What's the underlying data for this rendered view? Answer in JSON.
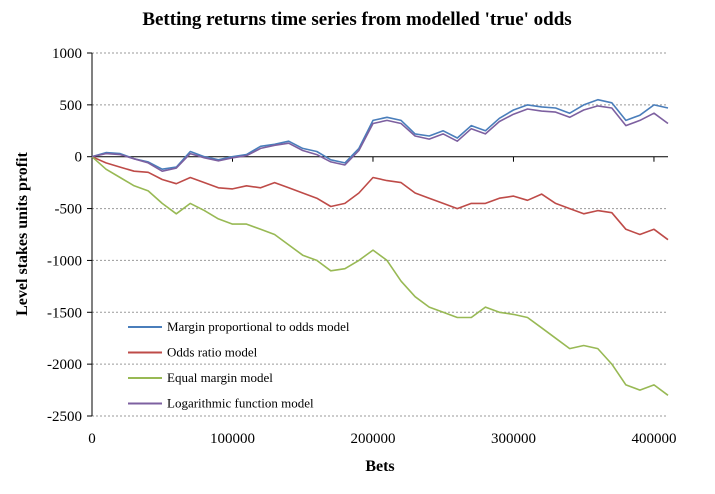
{
  "chart_data": {
    "type": "line",
    "title": "Betting returns time series from modelled 'true' odds",
    "xlabel": "Bets",
    "ylabel": "Level stakes units profit",
    "xlim": [
      0,
      410000
    ],
    "ylim": [
      -2500,
      1000
    ],
    "x_ticks": [
      "0",
      "100000",
      "200000",
      "300000",
      "400000"
    ],
    "y_ticks": [
      "1000",
      "500",
      "0",
      "-500",
      "-1000",
      "-1500",
      "-2000",
      "-2500"
    ],
    "grid": "horizontal",
    "legend_position": "bottom-left",
    "series": [
      {
        "name": "Margin proportional to odds model",
        "color": "#4a7ebb",
        "x": [
          0,
          10000,
          20000,
          30000,
          40000,
          50000,
          60000,
          70000,
          80000,
          90000,
          100000,
          110000,
          120000,
          130000,
          140000,
          150000,
          160000,
          170000,
          180000,
          190000,
          200000,
          210000,
          220000,
          230000,
          240000,
          250000,
          260000,
          270000,
          280000,
          290000,
          300000,
          310000,
          320000,
          330000,
          340000,
          350000,
          360000,
          370000,
          380000,
          390000,
          400000,
          410000
        ],
        "values": [
          0,
          40,
          30,
          -20,
          -50,
          -120,
          -100,
          50,
          0,
          -30,
          0,
          20,
          100,
          120,
          150,
          80,
          50,
          -30,
          -60,
          80,
          350,
          380,
          350,
          220,
          200,
          250,
          180,
          300,
          250,
          370,
          450,
          500,
          480,
          470,
          420,
          500,
          550,
          520,
          350,
          400,
          500,
          470
        ]
      },
      {
        "name": "Odds ratio model",
        "color": "#be4b48",
        "x": [
          0,
          10000,
          20000,
          30000,
          40000,
          50000,
          60000,
          70000,
          80000,
          90000,
          100000,
          110000,
          120000,
          130000,
          140000,
          150000,
          160000,
          170000,
          180000,
          190000,
          200000,
          210000,
          220000,
          230000,
          240000,
          250000,
          260000,
          270000,
          280000,
          290000,
          300000,
          310000,
          320000,
          330000,
          340000,
          350000,
          360000,
          370000,
          380000,
          390000,
          400000,
          410000
        ],
        "values": [
          0,
          -60,
          -100,
          -140,
          -150,
          -220,
          -260,
          -200,
          -250,
          -300,
          -310,
          -280,
          -300,
          -250,
          -300,
          -350,
          -400,
          -480,
          -450,
          -350,
          -200,
          -230,
          -250,
          -350,
          -400,
          -450,
          -500,
          -450,
          -450,
          -400,
          -380,
          -420,
          -360,
          -450,
          -500,
          -550,
          -520,
          -540,
          -700,
          -750,
          -700,
          -800
        ]
      },
      {
        "name": "Equal margin model",
        "color": "#98b954",
        "x": [
          0,
          10000,
          20000,
          30000,
          40000,
          50000,
          60000,
          70000,
          80000,
          90000,
          100000,
          110000,
          120000,
          130000,
          140000,
          150000,
          160000,
          170000,
          180000,
          190000,
          200000,
          210000,
          220000,
          230000,
          240000,
          250000,
          260000,
          270000,
          280000,
          290000,
          300000,
          310000,
          320000,
          330000,
          340000,
          350000,
          360000,
          370000,
          380000,
          390000,
          400000,
          410000
        ],
        "values": [
          0,
          -120,
          -200,
          -280,
          -330,
          -450,
          -550,
          -450,
          -520,
          -600,
          -650,
          -650,
          -700,
          -750,
          -850,
          -950,
          -1000,
          -1100,
          -1080,
          -1000,
          -900,
          -1000,
          -1200,
          -1350,
          -1450,
          -1500,
          -1550,
          -1550,
          -1450,
          -1500,
          -1520,
          -1550,
          -1650,
          -1750,
          -1850,
          -1820,
          -1850,
          -2000,
          -2200,
          -2250,
          -2200,
          -2300
        ]
      },
      {
        "name": "Logarithmic function model",
        "color": "#7d60a0",
        "x": [
          0,
          10000,
          20000,
          30000,
          40000,
          50000,
          60000,
          70000,
          80000,
          90000,
          100000,
          110000,
          120000,
          130000,
          140000,
          150000,
          160000,
          170000,
          180000,
          190000,
          200000,
          210000,
          220000,
          230000,
          240000,
          250000,
          260000,
          270000,
          280000,
          290000,
          300000,
          310000,
          320000,
          330000,
          340000,
          350000,
          360000,
          370000,
          380000,
          390000,
          400000,
          410000
        ],
        "values": [
          0,
          30,
          20,
          -20,
          -60,
          -140,
          -110,
          30,
          -10,
          -40,
          -10,
          10,
          80,
          110,
          130,
          60,
          20,
          -50,
          -80,
          60,
          320,
          350,
          320,
          200,
          170,
          220,
          150,
          270,
          220,
          340,
          410,
          460,
          440,
          430,
          380,
          450,
          490,
          470,
          300,
          350,
          420,
          320
        ]
      }
    ]
  }
}
